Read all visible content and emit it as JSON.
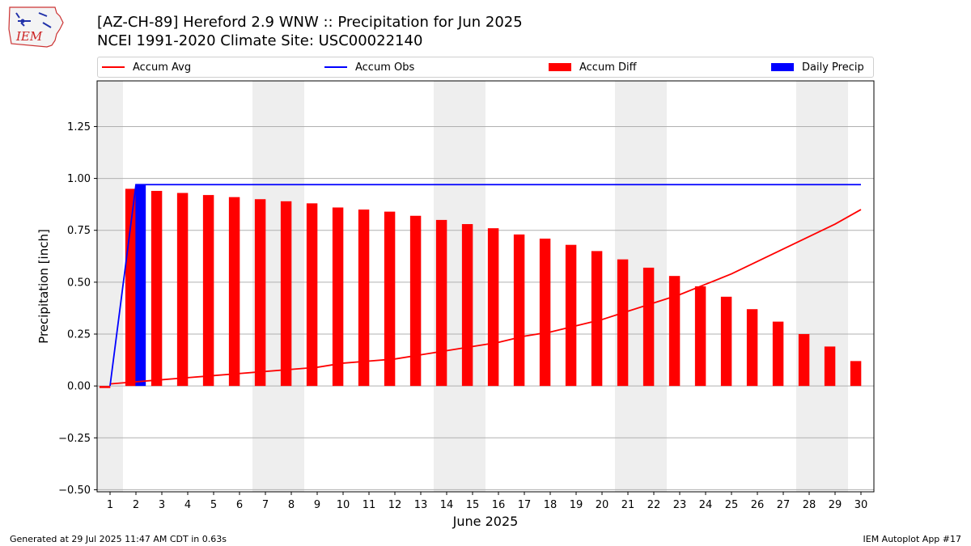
{
  "header": {
    "title": "[AZ-CH-89] Hereford 2.9 WNW :: Precipitation for Jun 2025",
    "subtitle": "NCEI 1991-2020 Climate Site: USC00022140",
    "logo_text": "IEM"
  },
  "legend": {
    "items": [
      {
        "label": "Accum Avg",
        "color": "#ff0000",
        "kind": "line"
      },
      {
        "label": "Accum Obs",
        "color": "#0000ff",
        "kind": "line"
      },
      {
        "label": "Accum Diff",
        "color": "#ff0000",
        "kind": "bar"
      },
      {
        "label": "Daily Precip",
        "color": "#0000ff",
        "kind": "bar"
      }
    ]
  },
  "footer": {
    "left": "Generated at 29 Jul 2025 11:47 AM CDT in 0.63s",
    "right": "IEM Autoplot App #17"
  },
  "chart_data": {
    "type": "bar",
    "xlabel": "June 2025",
    "ylabel": "Precipitation [inch]",
    "xlim": [
      0.5,
      30.5
    ],
    "ylim": [
      -0.51,
      1.47
    ],
    "yticks": [
      -0.5,
      -0.25,
      0.0,
      0.25,
      0.5,
      0.75,
      1.0,
      1.25
    ],
    "ytick_labels": [
      "−0.50",
      "−0.25",
      "0.00",
      "0.25",
      "0.50",
      "0.75",
      "1.00",
      "1.25"
    ],
    "x": [
      1,
      2,
      3,
      4,
      5,
      6,
      7,
      8,
      9,
      10,
      11,
      12,
      13,
      14,
      15,
      16,
      17,
      18,
      19,
      20,
      21,
      22,
      23,
      24,
      25,
      26,
      27,
      28,
      29,
      30
    ],
    "xtick_labels": [
      "1",
      "2",
      "3",
      "4",
      "5",
      "6",
      "7",
      "8",
      "9",
      "10",
      "11",
      "12",
      "13",
      "14",
      "15",
      "16",
      "17",
      "18",
      "19",
      "20",
      "21",
      "22",
      "23",
      "24",
      "25",
      "26",
      "27",
      "28",
      "29",
      "30"
    ],
    "weekend_shading": [
      [
        0.5,
        1.5
      ],
      [
        6.5,
        8.5
      ],
      [
        13.5,
        15.5
      ],
      [
        20.5,
        22.5
      ],
      [
        27.5,
        29.5
      ]
    ],
    "grid": "y",
    "legend_position": "top",
    "series": [
      {
        "name": "Accum Avg",
        "type": "line",
        "color": "#ff0000",
        "values": [
          0.01,
          0.02,
          0.03,
          0.04,
          0.05,
          0.06,
          0.07,
          0.08,
          0.09,
          0.11,
          0.12,
          0.13,
          0.15,
          0.17,
          0.19,
          0.21,
          0.24,
          0.26,
          0.29,
          0.32,
          0.36,
          0.4,
          0.44,
          0.49,
          0.54,
          0.6,
          0.66,
          0.72,
          0.78,
          0.85
        ]
      },
      {
        "name": "Accum Obs",
        "type": "line",
        "color": "#0000ff",
        "values": [
          0.0,
          0.97,
          0.97,
          0.97,
          0.97,
          0.97,
          0.97,
          0.97,
          0.97,
          0.97,
          0.97,
          0.97,
          0.97,
          0.97,
          0.97,
          0.97,
          0.97,
          0.97,
          0.97,
          0.97,
          0.97,
          0.97,
          0.97,
          0.97,
          0.97,
          0.97,
          0.97,
          0.97,
          0.97,
          0.97
        ]
      },
      {
        "name": "Accum Diff",
        "type": "bar",
        "color": "#ff0000",
        "values": [
          -0.01,
          0.95,
          0.94,
          0.93,
          0.92,
          0.91,
          0.9,
          0.89,
          0.88,
          0.86,
          0.85,
          0.84,
          0.82,
          0.8,
          0.78,
          0.76,
          0.73,
          0.71,
          0.68,
          0.65,
          0.61,
          0.57,
          0.53,
          0.48,
          0.43,
          0.37,
          0.31,
          0.25,
          0.19,
          0.12
        ]
      },
      {
        "name": "Daily Precip",
        "type": "bar",
        "color": "#0000ff",
        "values": [
          0.0,
          0.97,
          0,
          0,
          0,
          0,
          0,
          0,
          0,
          0,
          0,
          0,
          0,
          0,
          0,
          0,
          0,
          0,
          0,
          0,
          0,
          0,
          0,
          0,
          0,
          0,
          0,
          0,
          0,
          0
        ]
      }
    ]
  }
}
